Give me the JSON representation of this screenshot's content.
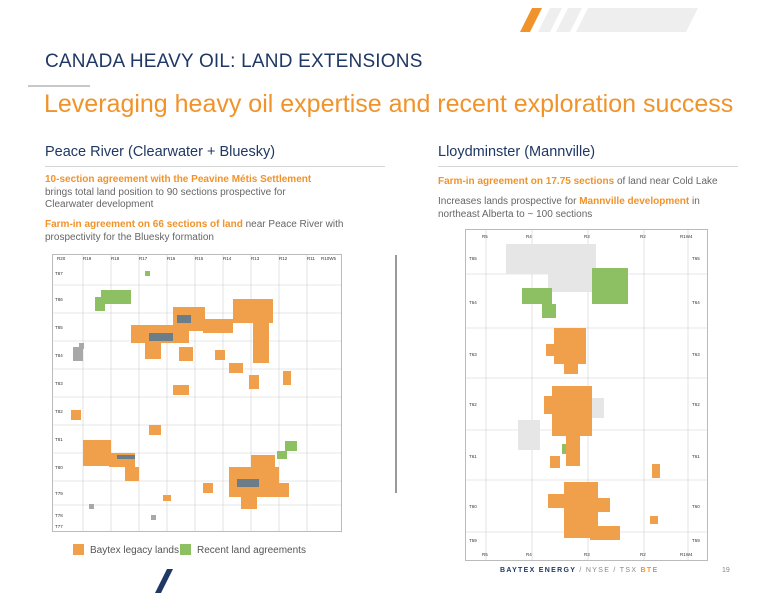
{
  "header": {
    "section_title": "CANADA HEAVY OIL:  LAND EXTENSIONS",
    "headline": "Leveraging heavy oil expertise and recent exploration success"
  },
  "left": {
    "title": "Peace River (Clearwater + Bluesky)",
    "p1_highlight": "10-section agreement with the Peavine Métis Settlement",
    "p1_text": " brings total land position to 90 sections prospective for Clearwater development",
    "p2_highlight": "Farm-in agreement on 66 sections of land",
    "p2_text": " near Peace River with prospectivity for the Bluesky formation",
    "map_top_labels": [
      "R20",
      "R19",
      "R18",
      "R17",
      "R16",
      "R15",
      "R14",
      "R13",
      "R12",
      "R11",
      "R10W5"
    ],
    "map_side_labels": [
      "T87",
      "T86",
      "T85",
      "T84",
      "T83",
      "T82",
      "T81",
      "T80",
      "T79",
      "T78",
      "T77"
    ]
  },
  "right": {
    "title": "Lloydminster (Mannville)",
    "p1_highlight": "Farm-in agreement on 17.75 sections",
    "p1_text": " of land near Cold Lake",
    "p2_pre": "Increases lands prospective for ",
    "p2_highlight": "Mannville development",
    "p2_text": " in northeast Alberta to ~ 100 sections",
    "map_top_labels": [
      "R5",
      "R4",
      "R3",
      "R2",
      "R1W4"
    ],
    "map_side_labels": [
      "T65",
      "T64",
      "T63",
      "T62",
      "T61",
      "T60",
      "T59"
    ]
  },
  "legend": {
    "legacy_label": "Baytex legacy lands",
    "recent_label": "Recent land agreements",
    "legacy_color": "#f0a04b",
    "recent_color": "#8cc063"
  },
  "footer": {
    "brand": "BAYTEX ENERGY",
    "exchanges": " / NYSE / TSX ",
    "ticker": "BTE",
    "page": "19"
  },
  "colors": {
    "accent": "#f0932b",
    "navy": "#1f3864"
  }
}
